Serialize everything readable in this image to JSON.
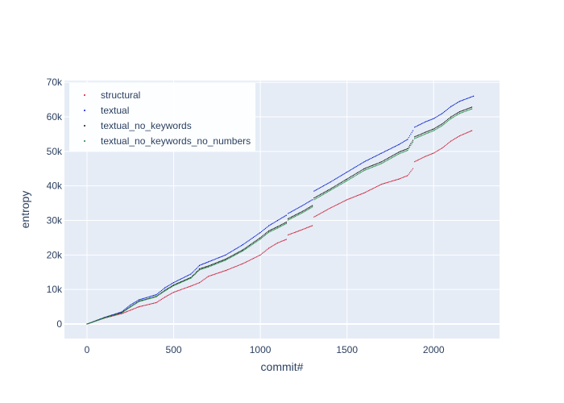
{
  "chart_data": {
    "type": "scatter",
    "xlabel": "commit#",
    "ylabel": "entropy",
    "xlim": [
      -130,
      2380
    ],
    "ylim": [
      -4200,
      70500
    ],
    "x_ticks": [
      0,
      500,
      1000,
      1500,
      2000
    ],
    "x_tick_labels": [
      "0",
      "500",
      "1000",
      "1500",
      "2000"
    ],
    "y_ticks": [
      0,
      10000,
      20000,
      30000,
      40000,
      50000,
      60000,
      70000
    ],
    "y_tick_labels": [
      "0",
      "10k",
      "20k",
      "30k",
      "40k",
      "50k",
      "60k",
      "70k"
    ],
    "grid": true,
    "legend_position": "top-left",
    "colors": {
      "plot_background": "#e5ecf6",
      "grid": "#ffffff",
      "text": "#2a3f5f"
    },
    "series": [
      {
        "name": "structural",
        "color": "#d0172f",
        "x": [
          0,
          100,
          200,
          250,
          300,
          400,
          450,
          500,
          600,
          650,
          700,
          800,
          900,
          1000,
          1050,
          1100,
          1150,
          1160,
          1250,
          1300,
          1310,
          1400,
          1500,
          1600,
          1700,
          1800,
          1850,
          1880,
          1890,
          1950,
          2000,
          2050,
          2100,
          2150,
          2220
        ],
        "y": [
          0,
          1700,
          3000,
          4000,
          5000,
          6200,
          7800,
          9200,
          11000,
          12000,
          13800,
          15500,
          17500,
          20000,
          22000,
          23500,
          24500,
          25800,
          27500,
          28500,
          31000,
          33500,
          36000,
          38000,
          40500,
          42000,
          43000,
          45000,
          47000,
          48500,
          49500,
          51000,
          53000,
          54500,
          56000
        ]
      },
      {
        "name": "textual",
        "color": "#0017cc",
        "x": [
          0,
          100,
          200,
          250,
          300,
          400,
          450,
          500,
          600,
          650,
          700,
          800,
          900,
          1000,
          1050,
          1100,
          1150,
          1160,
          1250,
          1300,
          1310,
          1400,
          1500,
          1600,
          1700,
          1800,
          1850,
          1880,
          1890,
          1950,
          2000,
          2050,
          2100,
          2150,
          2230
        ],
        "y": [
          0,
          1900,
          3500,
          5500,
          7000,
          8500,
          10500,
          12000,
          14500,
          17000,
          18000,
          20000,
          23000,
          26500,
          28500,
          30000,
          31500,
          32000,
          34500,
          36000,
          38500,
          41000,
          44000,
          47000,
          49500,
          52000,
          53500,
          56000,
          57000,
          58500,
          59500,
          61000,
          63000,
          64500,
          66000
        ]
      },
      {
        "name": "textual_no_keywords",
        "color": "#111111",
        "x": [
          0,
          100,
          200,
          250,
          300,
          400,
          450,
          500,
          600,
          650,
          700,
          800,
          900,
          1000,
          1050,
          1100,
          1150,
          1160,
          1250,
          1300,
          1310,
          1400,
          1500,
          1600,
          1700,
          1800,
          1850,
          1880,
          1890,
          1950,
          2000,
          2050,
          2100,
          2150,
          2220
        ],
        "y": [
          0,
          1800,
          3300,
          5000,
          6600,
          8000,
          9800,
          11300,
          13500,
          16000,
          16800,
          18800,
          21500,
          25000,
          27000,
          28200,
          29500,
          30500,
          32800,
          34300,
          36500,
          39000,
          42000,
          45000,
          47000,
          49800,
          50800,
          53200,
          54200,
          55500,
          56500,
          58000,
          60000,
          61500,
          62800
        ]
      },
      {
        "name": "textual_no_keywords_no_numbers",
        "color": "#1a8a3a",
        "x": [
          0,
          100,
          200,
          250,
          300,
          400,
          450,
          500,
          600,
          650,
          700,
          800,
          900,
          1000,
          1050,
          1100,
          1150,
          1160,
          1250,
          1300,
          1310,
          1400,
          1500,
          1600,
          1700,
          1800,
          1850,
          1880,
          1890,
          1950,
          2000,
          2050,
          2100,
          2150,
          2220
        ],
        "y": [
          0,
          1750,
          3200,
          4900,
          6500,
          7900,
          9600,
          11100,
          13300,
          15700,
          16500,
          18500,
          21200,
          24600,
          26600,
          27800,
          29100,
          30100,
          32400,
          33900,
          36000,
          38600,
          41500,
          44500,
          46500,
          49300,
          50300,
          52700,
          53700,
          55000,
          56000,
          57500,
          59500,
          61000,
          62300
        ]
      }
    ]
  }
}
